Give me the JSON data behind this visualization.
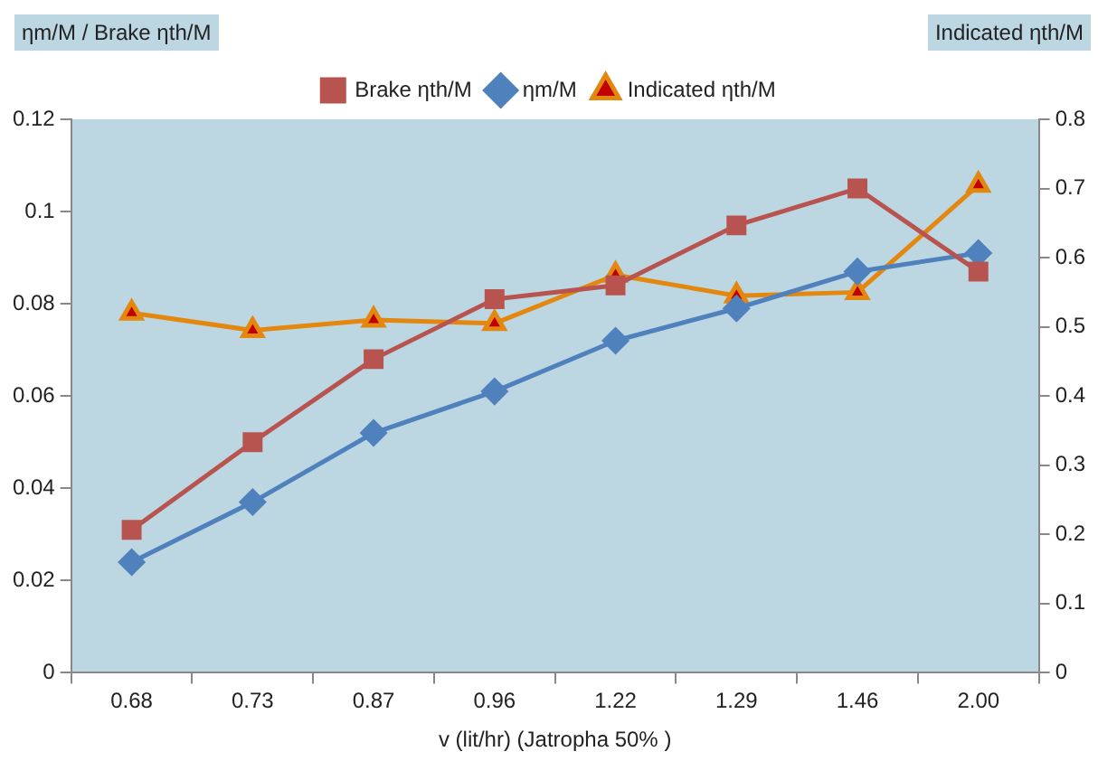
{
  "chart_data": {
    "type": "line",
    "ylabel": "ηm/M / Brake ηth/M",
    "y2label": "Indicated ηth/M",
    "xlabel": "v (lit/hr) (Jatropha 50% )",
    "categories": [
      "0.68",
      "0.73",
      "0.87",
      "0.96",
      "1.22",
      "1.29",
      "1.46",
      "2.00"
    ],
    "series": [
      {
        "name": "Brake ηth/M",
        "color": "#b85450",
        "marker": "square",
        "values": [
          0.031,
          0.05,
          0.068,
          0.081,
          0.084,
          0.097,
          0.105,
          0.087
        ]
      },
      {
        "name": "ηm/M",
        "color": "#4f81bd",
        "marker": "diamond",
        "values": [
          0.024,
          0.037,
          0.052,
          0.061,
          0.072,
          0.079,
          0.087,
          0.091
        ]
      },
      {
        "name": "Indicated ηth/M",
        "color": "#e3870f",
        "marker": "triangle",
        "axis": "y2",
        "values": [
          0.52,
          0.495,
          0.51,
          0.505,
          0.575,
          0.545,
          0.55,
          0.705
        ]
      }
    ],
    "ylim": [
      0,
      0.12
    ],
    "yticks": [
      0,
      0.02,
      0.04,
      0.06,
      0.08,
      0.1,
      0.12
    ],
    "y2lim": [
      0,
      0.8
    ],
    "y2ticks": [
      0,
      0.1,
      0.2,
      0.3,
      0.4,
      0.5,
      0.6,
      0.7,
      0.8
    ],
    "grid": false,
    "legend": "top",
    "line_style": "solid"
  }
}
